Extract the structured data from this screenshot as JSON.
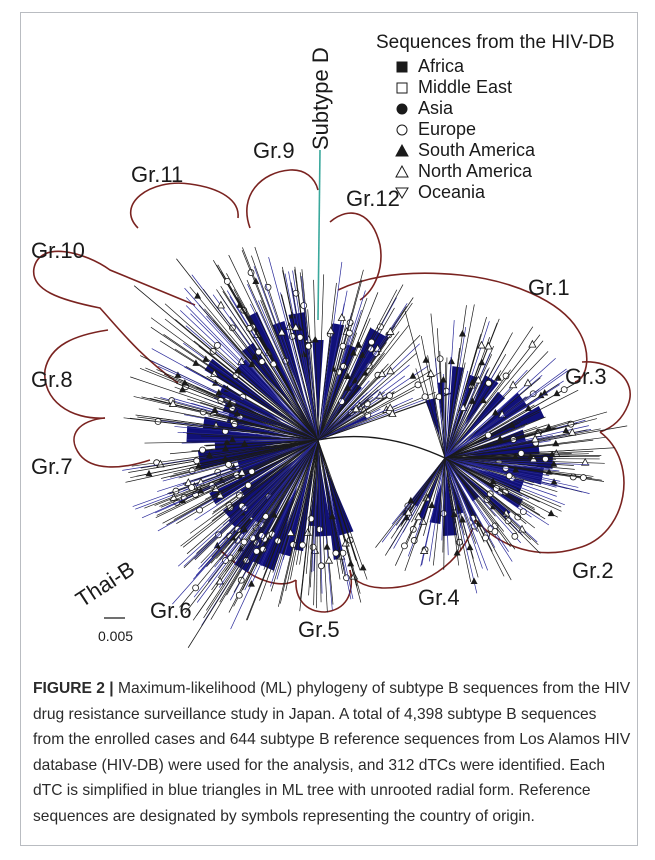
{
  "figure": {
    "legend": {
      "title": "Sequences from the HIV-DB",
      "items": [
        {
          "label": "Africa",
          "symbol": "filled-square"
        },
        {
          "label": "Middle East",
          "symbol": "open-square"
        },
        {
          "label": "Asia",
          "symbol": "filled-circle"
        },
        {
          "label": "Europe",
          "symbol": "open-circle"
        },
        {
          "label": "South America",
          "symbol": "filled-triangle"
        },
        {
          "label": "North America",
          "symbol": "open-triangle"
        },
        {
          "label": "Oceania",
          "symbol": "open-down-triangle"
        }
      ]
    },
    "subtype_d_label": "Subtype D",
    "thai_b_label": "Thai-B",
    "scale_bar_label": "0.005",
    "groups": {
      "gr1": "Gr.1",
      "gr2": "Gr.2",
      "gr3": "Gr.3",
      "gr4": "Gr.4",
      "gr5": "Gr.5",
      "gr6": "Gr.6",
      "gr7": "Gr.7",
      "gr8": "Gr.8",
      "gr9": "Gr.9",
      "gr10": "Gr.10",
      "gr11": "Gr.11",
      "gr12": "Gr.12"
    },
    "colors": {
      "clade_fill": "#111178",
      "branch": "#1a1a1a",
      "group_arc": "#7a2320",
      "subtype_d_branch": "#3aa89c"
    }
  },
  "caption": {
    "label": "FIGURE 2 |",
    "text": "Maximum-likelihood (ML) phylogeny of subtype B sequences from the HIV drug resistance surveillance study in Japan. A total of 4,398 subtype B sequences from the enrolled cases and 644 subtype B reference sequences from Los Alamos HIV database (HIV-DB) were used for the analysis, and 312 dTCs were identified. Each dTC is simplified in blue triangles in ML tree with unrooted radial form. Reference sequences are designated by symbols representing the country of origin."
  }
}
